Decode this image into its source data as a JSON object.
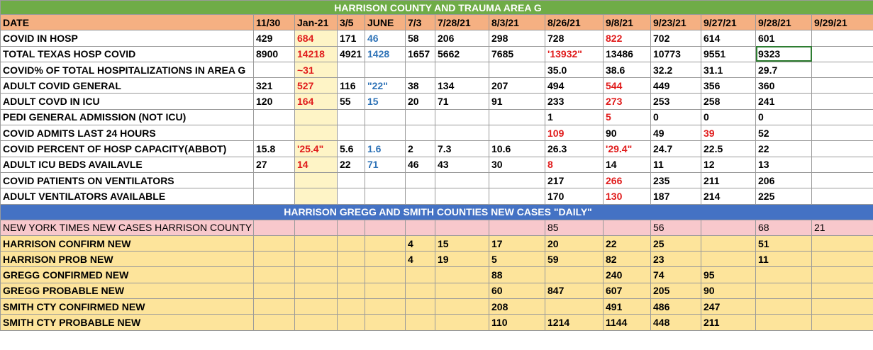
{
  "title": "HARRISON COUNTY  AND  TRAUMA AREA G",
  "section2_title": "HARRISON GREGG AND SMITH COUNTIES NEW CASES \"DAILY\"",
  "columns": [
    "DATE",
    "11/30",
    "Jan-21",
    "3/5",
    "JUNE",
    "7/3",
    "7/28/21",
    "8/3/21",
    "8/26/21",
    "9/8/21",
    "9/23/21",
    "9/27/21",
    "9/28/21",
    "9/29/21"
  ],
  "rows": [
    {
      "label": "COVID IN HOSP",
      "cells": [
        "429",
        "684",
        "171",
        "46",
        "58",
        "206",
        "298",
        "728",
        "822",
        "702",
        "614",
        "601",
        ""
      ]
    },
    {
      "label": "TOTAL TEXAS HOSP COVID",
      "cells": [
        "8900",
        "14218",
        "4921",
        "1428",
        "1657",
        "5662",
        "7685",
        "'13932\"",
        "13486",
        "10773",
        "9551",
        "9323",
        ""
      ]
    },
    {
      "label": "COVID% OF TOTAL HOSPITALIZATIONS IN AREA G",
      "cells": [
        "",
        "~31",
        "",
        "",
        "",
        "",
        "",
        "35.0",
        "38.6",
        "32.2",
        "31.1",
        "29.7",
        ""
      ]
    },
    {
      "label": "ADULT COVID GENERAL",
      "cells": [
        "321",
        "527",
        "116",
        "\"22\"",
        "38",
        "134",
        "207",
        "494",
        "544",
        "449",
        "356",
        "360",
        ""
      ]
    },
    {
      "label": "ADULT COVD IN ICU",
      "cells": [
        "120",
        "164",
        "55",
        "15",
        "20",
        "71",
        "91",
        "233",
        "273",
        "253",
        "258",
        "241",
        ""
      ]
    },
    {
      "label": "PEDI GENERAL ADMISSION (NOT ICU)",
      "cells": [
        "",
        "",
        "",
        "",
        "",
        "",
        "",
        "1",
        "5",
        "0",
        "0",
        "0",
        ""
      ]
    },
    {
      "label": "COVID ADMITS LAST 24 HOURS",
      "cells": [
        "",
        "",
        "",
        "",
        "",
        "",
        "",
        "109",
        "90",
        "49",
        "39",
        "52",
        ""
      ]
    },
    {
      "label": "COVID PERCENT OF HOSP  CAPACITY(ABBOT)",
      "cells": [
        "15.8",
        "'25.4\"",
        "5.6",
        "1.6",
        "2",
        "7.3",
        "10.6",
        "26.3",
        "'29.4\"",
        "24.7",
        "22.5",
        "22",
        ""
      ]
    },
    {
      "label": "ADULT ICU BEDS AVAILAVLE",
      "cells": [
        "27",
        "14",
        "22",
        "71",
        "46",
        "43",
        "30",
        "8",
        "14",
        "11",
        "12",
        "13",
        ""
      ]
    },
    {
      "label": "COVID PATIENTS ON VENTILATORS",
      "cells": [
        "",
        "",
        "",
        "",
        "",
        "",
        "",
        "217",
        "266",
        "235",
        "211",
        "206",
        ""
      ]
    },
    {
      "label": "ADULT VENTILATORS AVAILABLE",
      "cells": [
        "",
        "",
        "",
        "",
        "",
        "",
        "",
        "170",
        "130",
        "187",
        "214",
        "225",
        ""
      ]
    }
  ],
  "cases_rows": [
    {
      "label": "NEW YORK TIMES NEW CASES HARRISON COUNTY",
      "cells": [
        "",
        "",
        "",
        "",
        "",
        "",
        "",
        "85",
        "",
        "56",
        "",
        "68",
        "21"
      ]
    },
    {
      "label": "HARRISON CONFIRM NEW",
      "cells": [
        "",
        "",
        "",
        "",
        "4",
        "15",
        "17",
        "20",
        "22",
        "25",
        "",
        "51",
        ""
      ]
    },
    {
      "label": "HARRISON PROB NEW",
      "cells": [
        "",
        "",
        "",
        "",
        "4",
        "19",
        "5",
        "59",
        "82",
        "23",
        "",
        "11",
        ""
      ]
    },
    {
      "label": "GREGG CONFIRMED NEW",
      "cells": [
        "",
        "",
        "",
        "",
        "",
        "",
        "88",
        "",
        "240",
        "74",
        "95",
        "",
        ""
      ]
    },
    {
      "label": "GREGG PROBABLE NEW",
      "cells": [
        "",
        "",
        "",
        "",
        "",
        "",
        "60",
        "847",
        "607",
        "205",
        "90",
        "",
        ""
      ]
    },
    {
      "label": "SMITH  CTY CONFIRMED NEW",
      "cells": [
        "",
        "",
        "",
        "",
        "",
        "",
        "208",
        "",
        "491",
        "486",
        "247",
        "",
        ""
      ]
    },
    {
      "label": "SMITH  CTY PROBABLE NEW",
      "cells": [
        "",
        "",
        "",
        "",
        "",
        "",
        "110",
        "1214",
        "1144",
        "448",
        "211",
        "",
        ""
      ]
    }
  ],
  "colors": {
    "title_bg": "#6fac47",
    "header_bg": "#f5b082",
    "jan_column_bg": "#fef4c6",
    "band_bg": "#4472c4",
    "nyt_row_bg": "#f8c8cc",
    "cases_rows_bg": "#fde49b",
    "highlight_red": "#e01b1b",
    "highlight_blue": "#2f73b7",
    "selection_border": "#2e7d32"
  }
}
